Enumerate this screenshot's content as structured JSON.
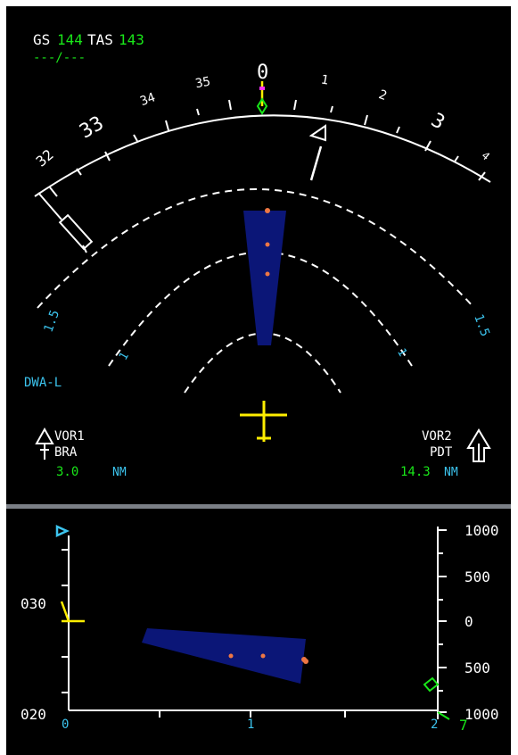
{
  "speeds": {
    "gs_label": "GS",
    "gs_value": "144",
    "tas_label": "TAS",
    "tas_value": "143",
    "wind_text": "---/---"
  },
  "compass": {
    "ticks": [
      "32",
      "33",
      "34",
      "35",
      "0",
      "1",
      "2",
      "3",
      "4"
    ]
  },
  "range_rings": {
    "outer_label": "1.5",
    "mid_label": "1"
  },
  "mode_label": "DWA-L",
  "nav_left": {
    "source": "VOR1",
    "ident": "BRA",
    "distance": "3.0",
    "unit": "NM"
  },
  "nav_right": {
    "source": "VOR2",
    "ident": "PDT",
    "distance": "14.3",
    "unit": "NM"
  },
  "vertical_display": {
    "left_labels": [
      "030",
      "020"
    ],
    "right_labels": [
      "1000",
      "500",
      "0",
      "500",
      "1000"
    ],
    "bottom_labels": [
      "0",
      "1",
      "2"
    ],
    "corner_label": "7"
  },
  "colors": {
    "text_green": "#19e619",
    "text_cyan": "#3cc4ee",
    "symbol_yellow": "#ffee00",
    "cone_blue": "#0b1677",
    "target_orange": "#ee7744",
    "magenta": "#ff33ff"
  },
  "icons": [
    "aircraft-symbol-icon",
    "vor1-arrow-icon",
    "vor2-arrow-icon",
    "heading-bug-icon",
    "selected-course-icon",
    "track-diamond-icon",
    "altitude-marker-icon"
  ]
}
